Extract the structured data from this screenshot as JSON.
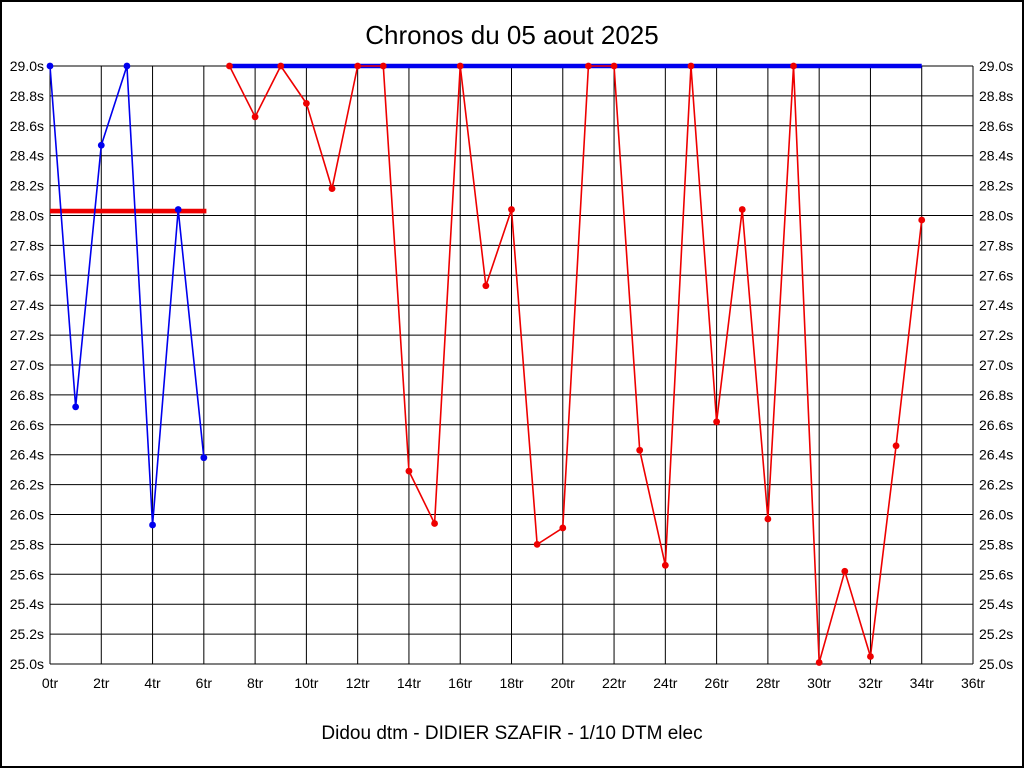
{
  "page": {
    "title": "Chronos du 05 aout 2025",
    "caption": "Didou dtm - DIDIER SZAFIR - 1/10 DTM elec"
  },
  "chart_data": {
    "type": "line",
    "title": "Chronos du 05 aout 2025",
    "subtitle": "Didou dtm - DIDIER SZAFIR - 1/10 DTM elec",
    "grid": true,
    "x_axis": {
      "min": 0,
      "max": 36,
      "tick_step": 2,
      "unit": "tr",
      "tick_values": [
        0,
        2,
        4,
        6,
        8,
        10,
        12,
        14,
        16,
        18,
        20,
        22,
        24,
        26,
        28,
        30,
        32,
        34,
        36
      ],
      "tick_labels": [
        "0tr",
        "2tr",
        "4tr",
        "6tr",
        "8tr",
        "10tr",
        "12tr",
        "14tr",
        "16tr",
        "18tr",
        "20tr",
        "22tr",
        "24tr",
        "26tr",
        "28tr",
        "30tr",
        "32tr",
        "34tr",
        "36tr"
      ]
    },
    "y_axis": {
      "min": 25.0,
      "max": 29.0,
      "tick_step": 0.2,
      "unit": "s",
      "labels_on_both_sides": true,
      "tick_values": [
        25.0,
        25.2,
        25.4,
        25.6,
        25.8,
        26.0,
        26.2,
        26.4,
        26.6,
        26.8,
        27.0,
        27.2,
        27.4,
        27.6,
        27.8,
        28.0,
        28.2,
        28.4,
        28.6,
        28.8,
        29.0
      ],
      "tick_labels": [
        "25.0s",
        "25.2s",
        "25.4s",
        "25.6s",
        "25.8s",
        "26.0s",
        "26.2s",
        "26.4s",
        "26.6s",
        "26.8s",
        "27.0s",
        "27.2s",
        "27.4s",
        "27.6s",
        "27.8s",
        "28.0s",
        "28.2s",
        "28.4s",
        "28.6s",
        "28.8s",
        "29.0s"
      ]
    },
    "series": [
      {
        "name": "blue-laps",
        "color": "#0000ee",
        "x": [
          0,
          1,
          2,
          3,
          4,
          5,
          6
        ],
        "values": [
          29.0,
          26.72,
          28.47,
          29.0,
          25.93,
          28.04,
          26.38
        ]
      },
      {
        "name": "red-laps",
        "color": "#ee0000",
        "x": [
          7,
          8,
          9,
          10,
          11,
          12,
          13,
          14,
          15,
          16,
          17,
          18,
          19,
          20,
          21,
          22,
          23,
          24,
          25,
          26,
          27,
          28,
          29,
          30,
          31,
          32,
          33,
          34
        ],
        "values": [
          29.0,
          28.66,
          29.0,
          28.75,
          28.18,
          29.0,
          29.0,
          26.29,
          25.94,
          29.0,
          27.53,
          28.04,
          25.8,
          25.91,
          29.0,
          29.0,
          26.43,
          25.66,
          29.0,
          26.62,
          28.04,
          25.97,
          29.0,
          25.01,
          25.62,
          25.05,
          26.46,
          27.97
        ]
      }
    ],
    "reference_lines": [
      {
        "name": "red-reference-line",
        "color": "#ee0000",
        "value": 28.03,
        "x_start": 0,
        "x_end": 6.1
      },
      {
        "name": "blue-reference-line",
        "color": "#0000ee",
        "value": 29.0,
        "x_start": 7,
        "x_end": 34
      }
    ]
  }
}
